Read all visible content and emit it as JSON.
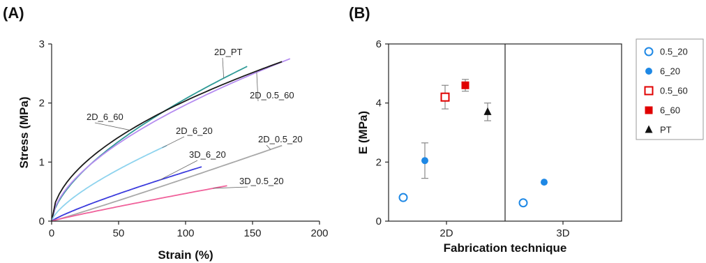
{
  "panels": {
    "a": "(A)",
    "b": "(B)"
  },
  "chart_data": [
    {
      "type": "line",
      "xlabel": "Strain (%)",
      "ylabel": "Stress (MPa)",
      "xlim": [
        0,
        200
      ],
      "ylim": [
        0,
        3
      ],
      "xticks": [
        "0",
        "50",
        "100",
        "150",
        "200"
      ],
      "yticks": [
        "0",
        "1",
        "2",
        "3"
      ],
      "grid": false,
      "series": [
        {
          "name": "2D_PT",
          "color": "#2e9a96",
          "x_end": 146,
          "y_end": 2.62,
          "shape": 0.62
        },
        {
          "name": "2D_0.5_60",
          "color": "#b58cf0",
          "x_end": 178,
          "y_end": 2.75,
          "shape": 0.58
        },
        {
          "name": "2D_6_60",
          "color": "#1a1a1a",
          "x_end": 172,
          "y_end": 2.7,
          "shape": 0.52
        },
        {
          "name": "2D_6_20",
          "color": "#8ed3ee",
          "x_end": 86,
          "y_end": 1.28,
          "shape": 0.7
        },
        {
          "name": "3D_6_20",
          "color": "#3b3bdd",
          "x_end": 112,
          "y_end": 0.92,
          "shape": 0.85
        },
        {
          "name": "2D_0.5_20",
          "color": "#a8a8a8",
          "x_end": 172,
          "y_end": 1.28,
          "shape": 1.05
        },
        {
          "name": "3D_0.5_20",
          "color": "#f0609a",
          "x_end": 131,
          "y_end": 0.6,
          "shape": 0.92
        }
      ],
      "annotations": [
        {
          "text": "2D_PT",
          "series": "2D_PT"
        },
        {
          "text": "2D_0.5_60",
          "series": "2D_0.5_60"
        },
        {
          "text": "2D_6_60",
          "series": "2D_6_60"
        },
        {
          "text": "2D_6_20",
          "series": "2D_6_20"
        },
        {
          "text": "3D_6_20",
          "series": "3D_6_20"
        },
        {
          "text": "2D_0.5_20",
          "series": "2D_0.5_20"
        },
        {
          "text": "3D_0.5_20",
          "series": "3D_0.5_20"
        }
      ]
    },
    {
      "type": "scatter",
      "xlabel": "Fabrication technique",
      "ylabel": "E (MPa)",
      "categories": [
        "2D",
        "3D"
      ],
      "ylim": [
        0,
        6
      ],
      "yticks": [
        "0",
        "2",
        "4",
        "6"
      ],
      "grid": false,
      "legend_position": "right",
      "series": [
        {
          "name": "0.5_20",
          "marker": "circle-open",
          "color": "#1e88e5",
          "points": [
            {
              "category": "2D",
              "y": 0.8,
              "err": 0
            },
            {
              "category": "3D",
              "y": 0.62,
              "err": 0
            }
          ]
        },
        {
          "name": "6_20",
          "marker": "circle-filled",
          "color": "#1e88e5",
          "points": [
            {
              "category": "2D",
              "y": 2.05,
              "err": 0.6
            },
            {
              "category": "3D",
              "y": 1.32,
              "err": 0
            }
          ]
        },
        {
          "name": "0.5_60",
          "marker": "square-open",
          "color": "#e00000",
          "points": [
            {
              "category": "2D",
              "y": 4.2,
              "err": 0.4
            }
          ]
        },
        {
          "name": "6_60",
          "marker": "square-filled",
          "color": "#e00000",
          "points": [
            {
              "category": "2D",
              "y": 4.6,
              "err": 0.2
            }
          ]
        },
        {
          "name": "PT",
          "marker": "triangle-filled",
          "color": "#111111",
          "points": [
            {
              "category": "2D",
              "y": 3.7,
              "err": 0.3
            }
          ]
        }
      ]
    }
  ]
}
